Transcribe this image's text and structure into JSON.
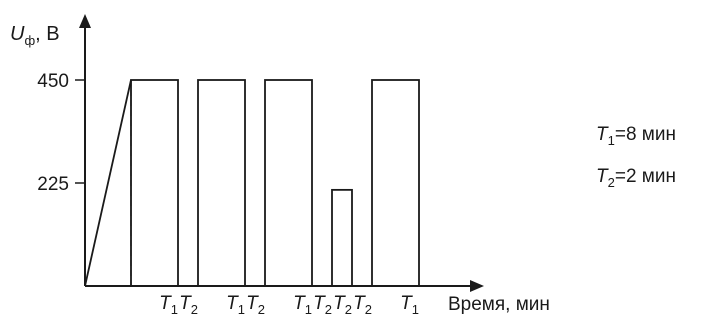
{
  "chart_data": {
    "type": "line",
    "title": "",
    "ylabel": {
      "symbol": "U",
      "subscript": "ф",
      "unit": ", В"
    },
    "xlabel": "Время, мин",
    "ylim": [
      0,
      500
    ],
    "yticks": [
      {
        "value": 450,
        "label": "450"
      },
      {
        "value": 225,
        "label": "225"
      }
    ],
    "ramp": {
      "from": 0,
      "to": 450
    },
    "segments": [
      {
        "kind": "T1",
        "level": 450
      },
      {
        "kind": "T2",
        "level": 0
      },
      {
        "kind": "T1",
        "level": 450
      },
      {
        "kind": "T2",
        "level": 0
      },
      {
        "kind": "T1",
        "level": 450
      },
      {
        "kind": "T2",
        "level": 0
      },
      {
        "kind": "T2",
        "level": 210
      },
      {
        "kind": "T2",
        "level": 0
      },
      {
        "kind": "T1",
        "level": 450
      }
    ],
    "xtick_labels": [
      "T1",
      "T2",
      "T1",
      "T2",
      "T1",
      "T2",
      "T2",
      "T2",
      "T1"
    ],
    "legend": [
      {
        "symbol": "T",
        "subscript": "1",
        "text": "=8 мин"
      },
      {
        "symbol": "T",
        "subscript": "2",
        "text": "=2 мин"
      }
    ],
    "grid": false,
    "legend_position": "right"
  }
}
